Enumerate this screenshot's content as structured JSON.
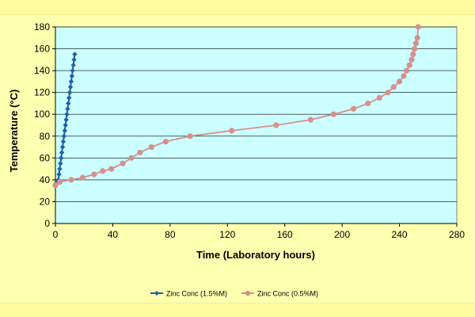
{
  "chart_data": {
    "type": "line",
    "title": "",
    "xlabel": "Time (Laboratory hours)",
    "ylabel": "Temperature (°C)",
    "xlim": [
      0,
      280
    ],
    "ylim": [
      0,
      180
    ],
    "xticks": [
      0,
      40,
      80,
      120,
      160,
      200,
      240,
      280
    ],
    "yticks": [
      0,
      20,
      40,
      60,
      80,
      100,
      120,
      140,
      160,
      180
    ],
    "grid": "horizontal",
    "legend_position": "bottom",
    "colors": {
      "plot_background": "#ccffff",
      "page_background": "#ffffb0"
    },
    "series": [
      {
        "name": "Zinc Conc (1.5%M)",
        "color": "#1f5fa8",
        "marker": "diamond",
        "x": [
          0,
          1,
          2,
          2.5,
          3,
          3.5,
          4,
          4.5,
          5,
          5.5,
          6,
          6.5,
          7,
          7.5,
          8,
          8.5,
          9,
          9.5,
          10,
          10.5,
          11,
          11.5,
          12,
          12.5,
          13,
          13.5
        ],
        "y": [
          35,
          38,
          40,
          45,
          50,
          55,
          60,
          65,
          70,
          75,
          80,
          85,
          90,
          95,
          100,
          105,
          110,
          115,
          120,
          125,
          130,
          135,
          140,
          145,
          150,
          155
        ]
      },
      {
        "name": "Zinc Conc (0.5%M)",
        "color": "#d4918f",
        "marker": "circle",
        "x": [
          0,
          3,
          11,
          19,
          27,
          33,
          39,
          47,
          53,
          59,
          67,
          77,
          94,
          123,
          154,
          178,
          194,
          208,
          218,
          226,
          232,
          236,
          240,
          243,
          245,
          247,
          248.5,
          249.5,
          250.5,
          251.5,
          252.5,
          253
        ],
        "y": [
          35,
          38,
          40,
          42,
          45,
          48,
          50,
          55,
          60,
          65,
          70,
          75,
          80,
          85,
          90,
          95,
          100,
          105,
          110,
          115,
          120,
          125,
          130,
          135,
          140,
          145,
          150,
          155,
          160,
          165,
          170,
          180
        ]
      }
    ]
  }
}
